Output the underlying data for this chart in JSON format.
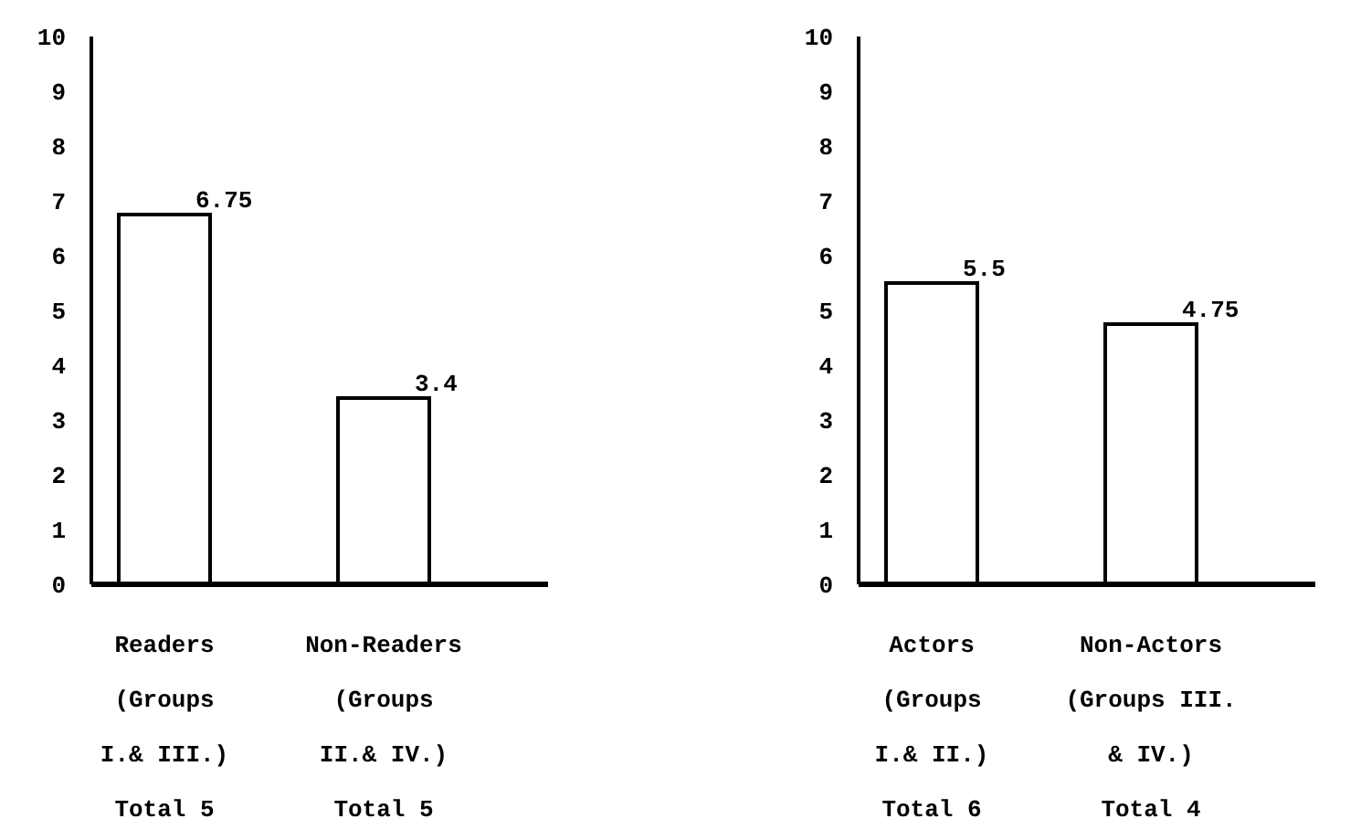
{
  "chart_data": [
    {
      "type": "bar",
      "categories": [
        "Readers\n(Groups\nI.& III.)\nTotal 5",
        "Non-Readers\n(Groups\nII.& IV.)\nTotal 5"
      ],
      "values": [
        6.75,
        3.4
      ],
      "color": "#ffffff",
      "ylim": [
        0,
        10
      ],
      "yticks": [
        0,
        1,
        2,
        3,
        4,
        5,
        6,
        7,
        8,
        9,
        10
      ],
      "data_labels": true
    },
    {
      "type": "bar",
      "categories": [
        "Actors\n(Groups\nI.& II.)\nTotal 6",
        "Non-Actors\n(Groups III.\n& IV.)\nTotal 4"
      ],
      "values": [
        5.5,
        4.75
      ],
      "color": "#ffffff",
      "ylim": [
        0,
        10
      ],
      "yticks": [
        0,
        1,
        2,
        3,
        4,
        5,
        6,
        7,
        8,
        9,
        10
      ],
      "data_labels": true
    }
  ]
}
